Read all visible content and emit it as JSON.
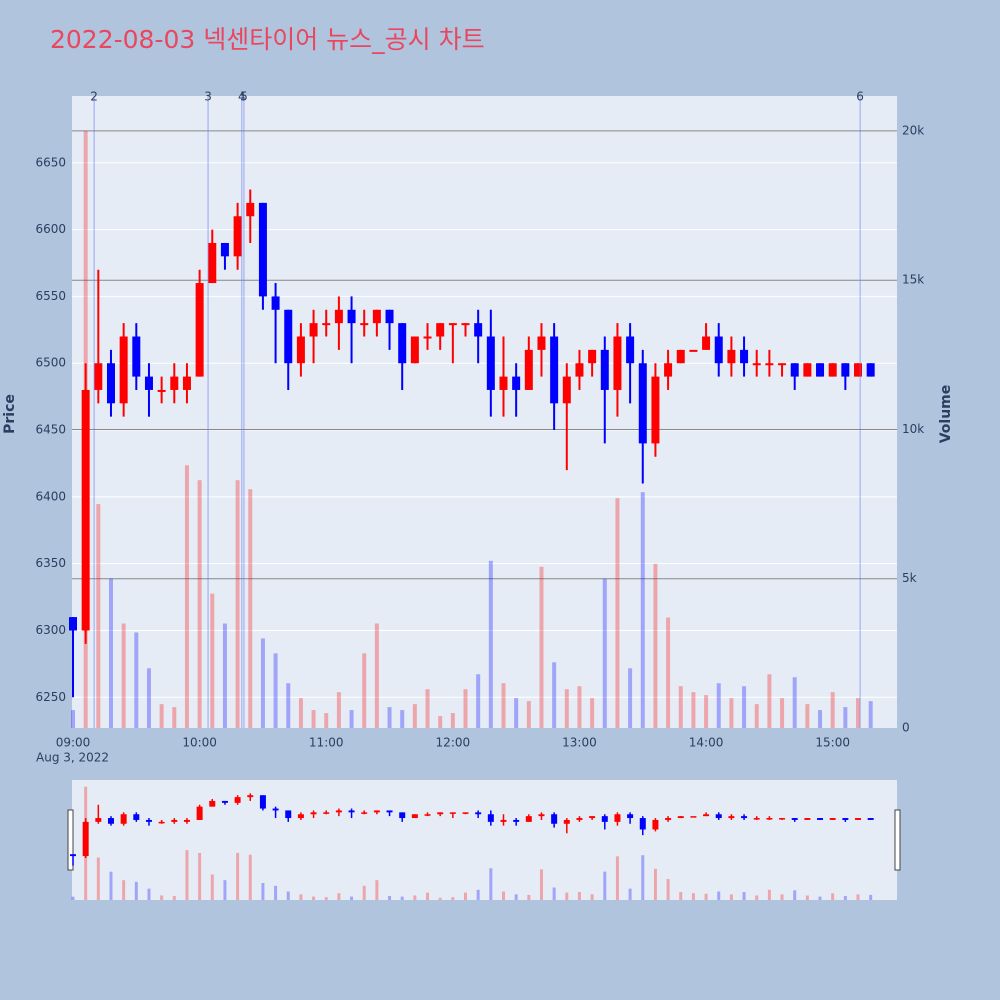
{
  "chart_data": {
    "type": "candlestick",
    "title": "2022-08-03 넥센타이어 뉴스_공시 차트",
    "y_axis_label": "Price",
    "y2_axis_label": "Volume",
    "x_date_label": "Aug 3, 2022",
    "x": [
      "09:00",
      "09:06",
      "09:12",
      "09:18",
      "09:24",
      "09:30",
      "09:36",
      "09:42",
      "09:48",
      "09:54",
      "10:00",
      "10:06",
      "10:12",
      "10:18",
      "10:24",
      "10:30",
      "10:36",
      "10:42",
      "10:48",
      "10:54",
      "11:00",
      "11:06",
      "11:12",
      "11:18",
      "11:24",
      "11:30",
      "11:36",
      "11:42",
      "11:48",
      "11:54",
      "12:00",
      "12:06",
      "12:12",
      "12:18",
      "12:24",
      "12:30",
      "12:36",
      "12:42",
      "12:48",
      "12:54",
      "13:00",
      "13:06",
      "13:12",
      "13:18",
      "13:24",
      "13:30",
      "13:36",
      "13:42",
      "13:48",
      "13:54",
      "14:00",
      "14:06",
      "14:12",
      "14:18",
      "14:24",
      "14:30",
      "14:36",
      "14:42",
      "14:48",
      "14:54",
      "15:00",
      "15:06",
      "15:12",
      "15:18"
    ],
    "open": [
      6310,
      6300,
      6480,
      6500,
      6470,
      6520,
      6490,
      6480,
      6480,
      6480,
      6490,
      6560,
      6590,
      6580,
      6610,
      6620,
      6550,
      6540,
      6500,
      6520,
      6530,
      6530,
      6540,
      6530,
      6530,
      6540,
      6530,
      6500,
      6520,
      6520,
      6530,
      6530,
      6530,
      6520,
      6480,
      6490,
      6480,
      6510,
      6520,
      6470,
      6490,
      6500,
      6510,
      6480,
      6520,
      6500,
      6440,
      6490,
      6500,
      6510,
      6510,
      6520,
      6500,
      6510,
      6500,
      6500,
      6500,
      6500,
      6490,
      6500,
      6490,
      6500,
      6490,
      6500
    ],
    "high": [
      6310,
      6500,
      6570,
      6510,
      6530,
      6530,
      6500,
      6490,
      6500,
      6500,
      6570,
      6600,
      6590,
      6620,
      6630,
      6620,
      6560,
      6540,
      6530,
      6540,
      6540,
      6550,
      6550,
      6540,
      6540,
      6540,
      6530,
      6520,
      6530,
      6530,
      6530,
      6530,
      6540,
      6540,
      6520,
      6500,
      6520,
      6530,
      6530,
      6500,
      6510,
      6510,
      6520,
      6530,
      6530,
      6510,
      6500,
      6510,
      6510,
      6510,
      6530,
      6530,
      6520,
      6520,
      6510,
      6510,
      6500,
      6500,
      6500,
      6500,
      6500,
      6500,
      6500,
      6500
    ],
    "low": [
      6250,
      6290,
      6470,
      6460,
      6460,
      6480,
      6460,
      6470,
      6470,
      6470,
      6490,
      6560,
      6570,
      6570,
      6590,
      6540,
      6500,
      6480,
      6490,
      6500,
      6520,
      6510,
      6500,
      6520,
      6520,
      6510,
      6480,
      6500,
      6510,
      6510,
      6500,
      6520,
      6500,
      6460,
      6460,
      6460,
      6480,
      6490,
      6450,
      6420,
      6480,
      6490,
      6440,
      6460,
      6470,
      6410,
      6430,
      6480,
      6500,
      6510,
      6510,
      6490,
      6490,
      6490,
      6490,
      6490,
      6490,
      6480,
      6490,
      6490,
      6490,
      6480,
      6490,
      6490
    ],
    "close": [
      6300,
      6480,
      6500,
      6470,
      6520,
      6490,
      6480,
      6480,
      6490,
      6490,
      6560,
      6590,
      6580,
      6610,
      6620,
      6550,
      6540,
      6500,
      6520,
      6530,
      6530,
      6540,
      6530,
      6530,
      6540,
      6530,
      6500,
      6520,
      6520,
      6530,
      6530,
      6530,
      6520,
      6480,
      6490,
      6480,
      6510,
      6520,
      6470,
      6490,
      6500,
      6510,
      6480,
      6520,
      6500,
      6440,
      6490,
      6500,
      6510,
      6510,
      6520,
      6500,
      6510,
      6500,
      6500,
      6500,
      6500,
      6490,
      6500,
      6490,
      6500,
      6490,
      6500,
      6490
    ],
    "volume": [
      600,
      20000,
      7500,
      5000,
      3500,
      3200,
      2000,
      800,
      700,
      8800,
      8300,
      4500,
      3500,
      8300,
      8000,
      3000,
      2500,
      1500,
      1000,
      600,
      500,
      1200,
      600,
      2500,
      3500,
      700,
      600,
      800,
      1300,
      400,
      500,
      1300,
      1800,
      5600,
      1500,
      1000,
      900,
      5400,
      2200,
      1300,
      1400,
      1000,
      5000,
      7700,
      2000,
      7900,
      5500,
      3700,
      1400,
      1200,
      1100,
      1500,
      1000,
      1400,
      800,
      1800,
      1000,
      1700,
      800,
      600,
      1200,
      700,
      1000,
      900
    ],
    "up_color": "#ff0000",
    "down_color": "#0000ff",
    "xlim": [
      "09:00",
      "15:30"
    ],
    "xticks": [
      "09:00",
      "10:00",
      "11:00",
      "12:00",
      "13:00",
      "14:00",
      "15:00"
    ],
    "ylim": [
      6227,
      6700
    ],
    "yticks": [
      6250,
      6300,
      6350,
      6400,
      6450,
      6500,
      6550,
      6600,
      6650
    ],
    "y2lim": [
      0,
      21170
    ],
    "y2ticks": [
      0,
      {
        "value": 5000,
        "label": "5k"
      },
      {
        "value": 10000,
        "label": "10k"
      },
      {
        "value": 15000,
        "label": "15k"
      },
      {
        "value": 20000,
        "label": "20k"
      }
    ],
    "annotations": [
      {
        "x": "09:10",
        "label": "2"
      },
      {
        "x": "10:04",
        "label": "3"
      },
      {
        "x": "10:20",
        "label": "4"
      },
      {
        "x": "10:21",
        "label": "5"
      },
      {
        "x": "15:13",
        "label": "6"
      }
    ],
    "grid": true
  }
}
